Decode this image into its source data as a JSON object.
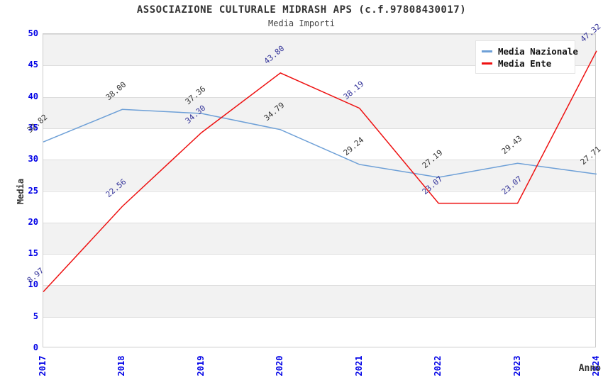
{
  "header": {
    "title": "ASSOCIAZIONE CULTURALE MIDRASH APS (c.f.97808430017)",
    "subtitle": "Media Importi"
  },
  "legend": {
    "position": "top-right",
    "items": [
      {
        "label": "Media Nazionale",
        "color": "#6ea0d7"
      },
      {
        "label": "Media Ente",
        "color": "#ee1111"
      }
    ]
  },
  "axes": {
    "xlabel": "Anno",
    "ylabel": "Media",
    "tick_label_color": "#0000e6"
  },
  "chart_data": {
    "type": "line",
    "title": "ASSOCIAZIONE CULTURALE MIDRASH APS (c.f.97808430017)",
    "subtitle": "Media Importi",
    "xlabel": "Anno",
    "ylabel": "Media",
    "categories": [
      "2017",
      "2018",
      "2019",
      "2020",
      "2021",
      "2022",
      "2023",
      "2024"
    ],
    "series": [
      {
        "name": "Media Nazionale",
        "color": "#6ea0d7",
        "label_color": "#333333",
        "values": [
          32.82,
          38.0,
          37.36,
          34.79,
          29.24,
          27.19,
          29.43,
          27.71
        ]
      },
      {
        "name": "Media Ente",
        "color": "#ee1111",
        "label_color": "#333399",
        "values": [
          8.97,
          22.56,
          34.3,
          43.8,
          38.19,
          23.07,
          23.07,
          47.32
        ]
      }
    ],
    "ylim": [
      0,
      50
    ],
    "ytick_step": 5,
    "yticks": [
      0,
      5,
      10,
      15,
      20,
      25,
      30,
      35,
      40,
      45,
      50
    ],
    "grid": true,
    "band_colors": [
      "#ffffff",
      "#f2f2f2"
    ],
    "gridline_color": "#dddddd",
    "legend_position": "top-right",
    "data_label_decimals": 2
  }
}
